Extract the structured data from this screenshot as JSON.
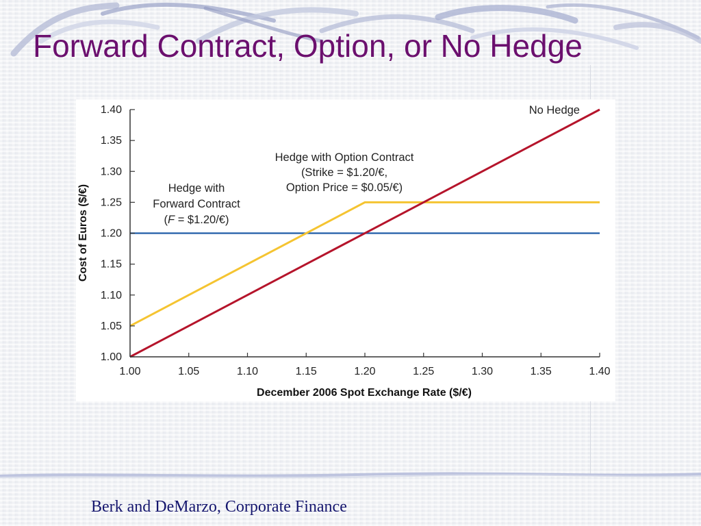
{
  "slide": {
    "title": "Forward Contract, Option, or No Hedge",
    "footer": "Berk and DeMarzo, Corporate Finance"
  },
  "chart_data": {
    "type": "line",
    "xlabel": "December 2006 Spot Exchange Rate ($/€)",
    "ylabel": "Cost of Euros ($/€)",
    "xlim": [
      1.0,
      1.4
    ],
    "ylim": [
      1.0,
      1.4
    ],
    "x_ticks": [
      "1.00",
      "1.05",
      "1.10",
      "1.15",
      "1.20",
      "1.25",
      "1.30",
      "1.35",
      "1.40"
    ],
    "y_ticks": [
      "1.00",
      "1.05",
      "1.10",
      "1.15",
      "1.20",
      "1.25",
      "1.30",
      "1.35",
      "1.40"
    ],
    "grid": false,
    "series": [
      {
        "key": "forward",
        "color": "#1f5ca8",
        "points": [
          [
            1.0,
            1.2
          ],
          [
            1.4,
            1.2
          ]
        ]
      },
      {
        "key": "option",
        "color": "#f5c431",
        "points": [
          [
            1.0,
            1.05
          ],
          [
            1.2,
            1.25
          ],
          [
            1.4,
            1.25
          ]
        ]
      },
      {
        "key": "nohedge",
        "color": "#b5142b",
        "points": [
          [
            1.0,
            1.0
          ],
          [
            1.4,
            1.4
          ]
        ]
      }
    ],
    "annotations": {
      "nohedge": [
        "No Hedge"
      ],
      "option": [
        "Hedge with Option Contract",
        "(Strike = $1.20/€,",
        "Option Price = $0.05/€)"
      ],
      "forward_line1": "Hedge with",
      "forward_line2": "Forward Contract",
      "forward_line3_var": "F",
      "forward_line3_rest": " = $1.20/€)",
      "forward_line3_open": "("
    }
  }
}
